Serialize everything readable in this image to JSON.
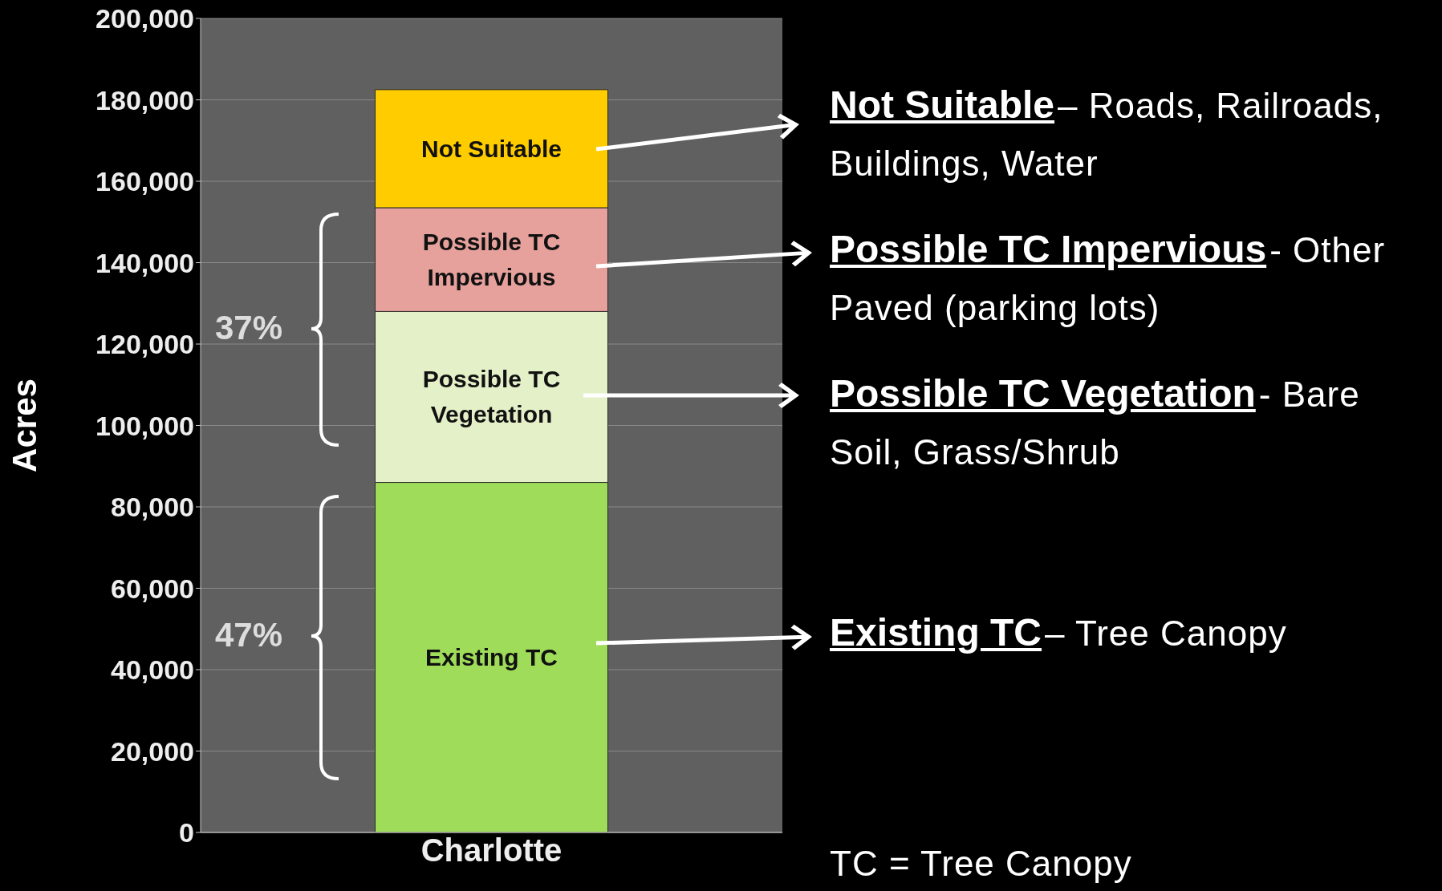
{
  "chart_data": {
    "type": "bar",
    "stacked": true,
    "ylabel": "Acres",
    "categories": [
      "Charlotte"
    ],
    "series": [
      {
        "name": "Existing TC",
        "color": "#9fdc5a",
        "values": [
          86000
        ]
      },
      {
        "name": "Possible TC Vegetation",
        "color": "#e3f0c8",
        "values": [
          42000
        ]
      },
      {
        "name": "Possible TC Impervious",
        "color": "#e6a19c",
        "values": [
          25500
        ]
      },
      {
        "name": "Not Suitable",
        "color": "#ffcc00",
        "values": [
          29000
        ]
      }
    ],
    "ylim": [
      0,
      200000
    ],
    "yticks": [
      {
        "value": 0,
        "label": "0"
      },
      {
        "value": 20000,
        "label": "20,000"
      },
      {
        "value": 40000,
        "label": "40,000"
      },
      {
        "value": 60000,
        "label": "60,000"
      },
      {
        "value": 80000,
        "label": "80,000"
      },
      {
        "value": 100000,
        "label": "100,000"
      },
      {
        "value": 120000,
        "label": "120,000"
      },
      {
        "value": 140000,
        "label": "140,000"
      },
      {
        "value": 160000,
        "label": "160,000"
      },
      {
        "value": 180000,
        "label": "180,000"
      },
      {
        "value": 200000,
        "label": "200,000"
      }
    ],
    "grid": "y",
    "legend": false,
    "annotations": [
      "37%",
      "47%",
      "Not Suitable",
      "– Roads, Railroads, Buildings, Water",
      "Possible TC Impervious",
      "- Other Paved (parking lots)",
      "Possible TC Vegetation",
      "- Bare Soil, Grass/Shrub",
      "Existing TC",
      "– Tree Canopy",
      "TC = Tree Canopy"
    ]
  }
}
